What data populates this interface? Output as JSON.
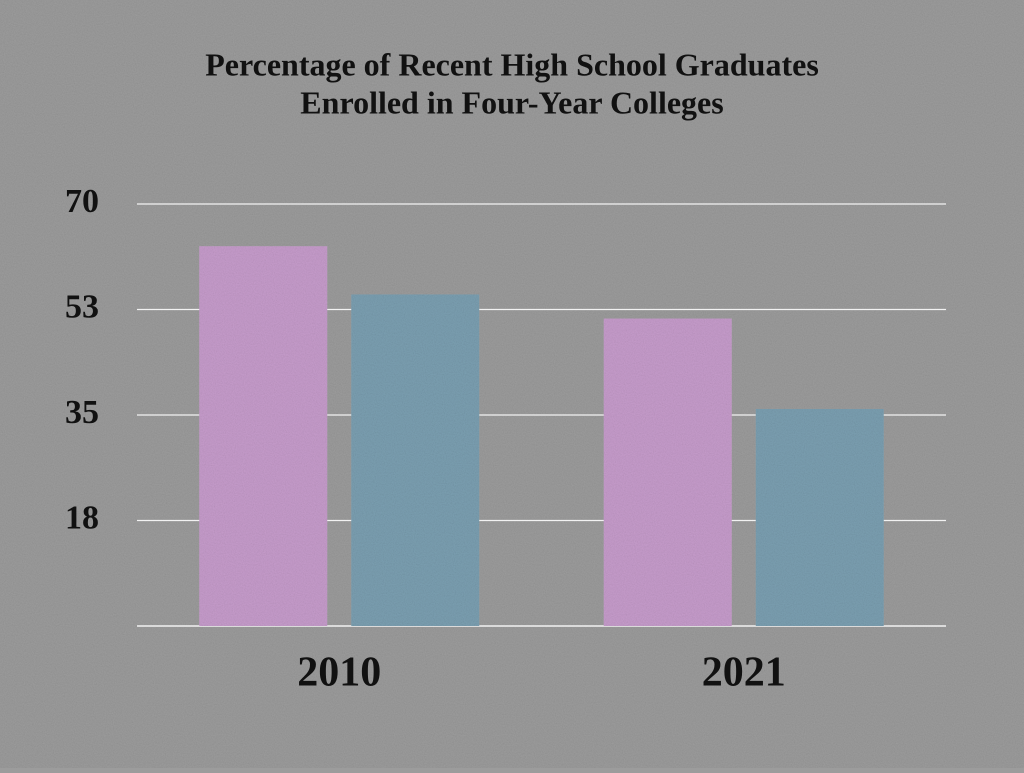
{
  "chart_data": {
    "type": "bar",
    "title": [
      "Percentage of Recent High School Graduates",
      "Enrolled in Four-Year Colleges"
    ],
    "categories": [
      "2010",
      "2021"
    ],
    "series": [
      {
        "color": "#c69ccb",
        "values": [
          63,
          51
        ]
      },
      {
        "color": "#7b9fb1",
        "values": [
          55,
          36
        ]
      }
    ],
    "ylim": [
      0,
      70
    ],
    "yticks": [
      {
        "value": 17.5,
        "label": "18"
      },
      35,
      {
        "value": 52.5,
        "label": "53"
      },
      70
    ],
    "grid": true
  }
}
